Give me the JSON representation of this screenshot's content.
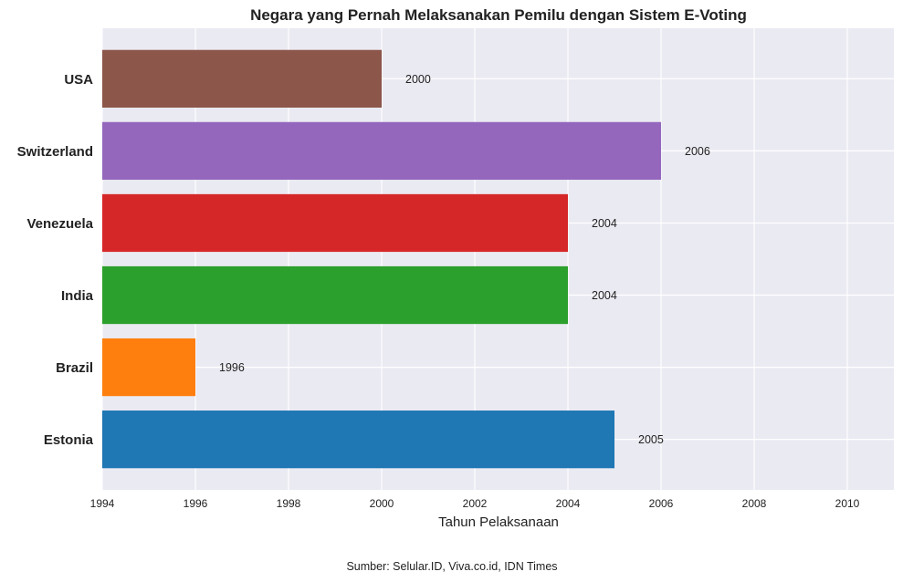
{
  "chart_data": {
    "type": "bar",
    "orientation": "horizontal",
    "title": "Negara yang Pernah Melaksanakan Pemilu dengan Sistem E-Voting",
    "xlabel": "Tahun Pelaksanaan",
    "ylabel": "",
    "categories": [
      "Estonia",
      "Brazil",
      "India",
      "Venezuela",
      "Switzerland",
      "USA"
    ],
    "values": [
      2005,
      1996,
      2004,
      2004,
      2006,
      2000
    ],
    "data_labels": [
      "2005",
      "1996",
      "2004",
      "2004",
      "2006",
      "2000"
    ],
    "colors": [
      "#1f77b4",
      "#ff7f0e",
      "#2ca02c",
      "#d62728",
      "#9467bd",
      "#8c564b"
    ],
    "xlim": [
      1994,
      2011
    ],
    "xticks": [
      1994,
      1996,
      1998,
      2000,
      2002,
      2004,
      2006,
      2008,
      2010
    ],
    "grid": true,
    "background": "#eaeaf2",
    "source_note": "Sumber: Selular.ID, Viva.co.id, IDN Times"
  }
}
